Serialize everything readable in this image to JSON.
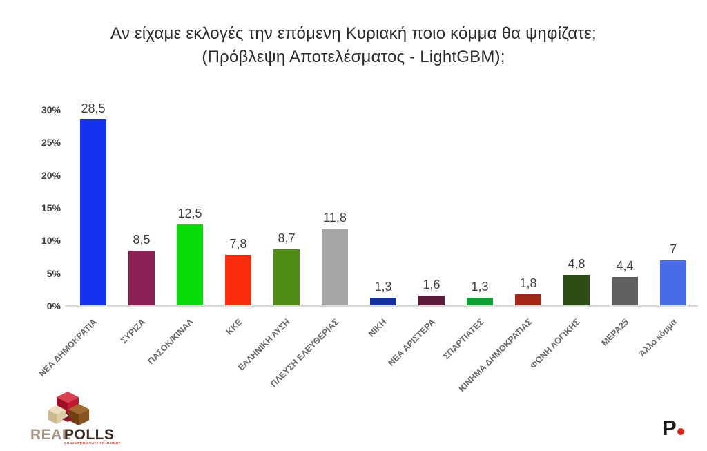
{
  "title": {
    "line1": "Αν είχαμε εκλογές την επόμενη Κυριακή ποιο κόμμα θα ψηφίζατε;",
    "line2": "(Πρόβλεψη Αποτελέσματος - LightGBM);"
  },
  "chart_data": {
    "type": "bar",
    "title": "Αν είχαμε εκλογές την επόμενη Κυριακή ποιο κόμμα θα ψηφίζατε; (Πρόβλεψη Αποτελέσματος - LightGBM);",
    "categories": [
      "ΝΕΑ ΔΗΜΟΚΡΑΤΙΑ",
      "ΣΥΡΙΖΑ",
      "ΠΑΣΟΚ/ΚΙΝΑΛ",
      "ΚΚΕ",
      "ΕΛΛΗΝΙΚΗ ΛΥΣΗ",
      "ΠΛΕΥΣΗ ΕΛΕΥΘΕΡΙΑΣ",
      "ΝΙΚΗ",
      "ΝΕΑ ΑΡΙΣΤΕΡΑ",
      "ΣΠΑΡΤΙΑΤΕΣ",
      "ΚΙΝΗΜΑ ΔΗΜΟΚΡΑΤΙΑΣ",
      "ΦΩΝΗ ΛΟΓΙΚΗΣ",
      "ΜΕΡΑ25",
      "Άλλο κόμμα"
    ],
    "values": [
      28.5,
      8.5,
      12.5,
      7.8,
      8.7,
      11.8,
      1.3,
      1.6,
      1.3,
      1.8,
      4.8,
      4.4,
      7
    ],
    "value_labels": [
      "28,5",
      "8,5",
      "12,5",
      "7,8",
      "8,7",
      "11,8",
      "1,3",
      "1,6",
      "1,3",
      "1,8",
      "4,8",
      "4,4",
      "7"
    ],
    "bar_colors": [
      "#1532f0",
      "#8c2155",
      "#06dd06",
      "#fb2c0d",
      "#4f8c15",
      "#a6a6a6",
      "#15309f",
      "#5c1b38",
      "#0fa033",
      "#a62617",
      "#2e4d12",
      "#616161",
      "#4a6be8"
    ],
    "xlabel": "",
    "ylabel": "",
    "ylim": [
      0,
      30
    ],
    "y_ticks": [
      "0%",
      "5%",
      "10%",
      "15%",
      "20%",
      "25%",
      "30%"
    ],
    "y_tick_values": [
      0,
      5,
      10,
      15,
      20,
      25,
      30
    ],
    "grid": false,
    "legend": false,
    "decimal_separator": ","
  },
  "branding": {
    "realpolls": {
      "name_part1": "REAL",
      "name_part2": "POLLS",
      "tagline": "CONVERTING DATA TO INSIGHT",
      "cube_red": "#c41a31",
      "cube_red_dark": "#9e0f26",
      "cube_brown": "#8a5420",
      "cube_brown_dark": "#6f3f12",
      "cube_tan": "#e2d5b2",
      "cube_tan_dark": "#cbb98e",
      "text_color_real": "#a5937b",
      "text_color_polls": "#3f2d26",
      "tagline_color": "#c0392b"
    },
    "p_logo": {
      "letter": "P",
      "dot_color": "#e5231b"
    }
  }
}
